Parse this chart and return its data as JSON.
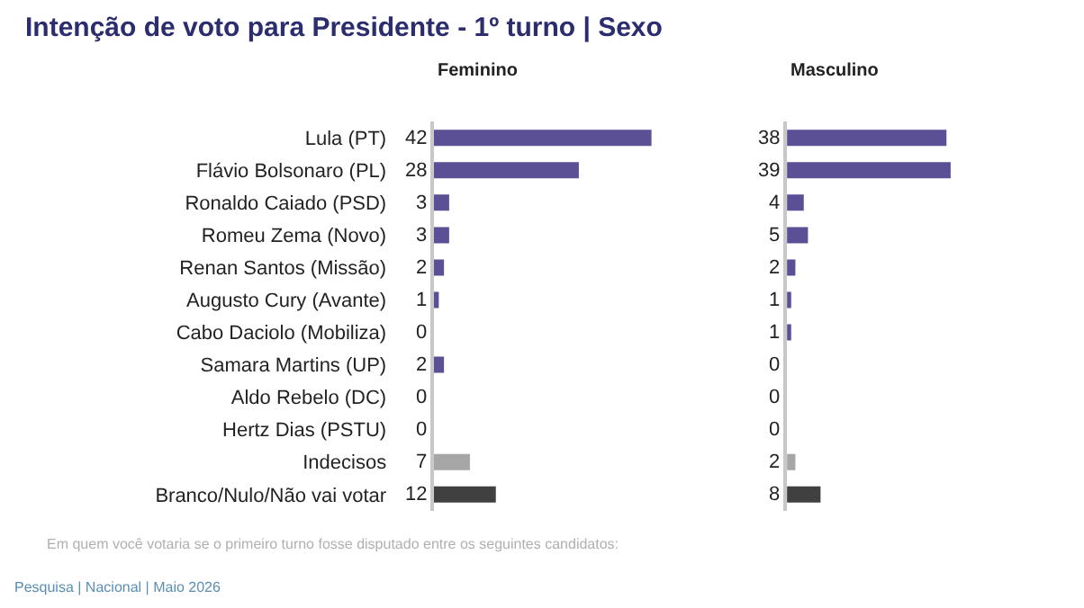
{
  "chart_data": [
    {
      "type": "bar",
      "orientation": "horizontal",
      "title": "Intenção de voto para Presidente - 1º turno | Sexo",
      "subtitle": "Feminino",
      "categories": [
        "Lula (PT)",
        "Flávio Bolsonaro (PL)",
        "Ronaldo Caiado (PSD)",
        "Romeu Zema (Novo)",
        "Renan Santos (Missão)",
        "Augusto Cury (Avante)",
        "Cabo Daciolo (Mobiliza)",
        "Samara Martins (UP)",
        "Aldo Rebelo (DC)",
        "Hertz Dias (PSTU)",
        "Indecisos",
        "Branco/Nulo/Não vai votar"
      ],
      "values": [
        42,
        28,
        3,
        3,
        2,
        1,
        0,
        2,
        0,
        0,
        7,
        12
      ],
      "colors": [
        "#5b4f96",
        "#5b4f96",
        "#5b4f96",
        "#5b4f96",
        "#5b4f96",
        "#5b4f96",
        "#5b4f96",
        "#5b4f96",
        "#5b4f96",
        "#5b4f96",
        "#a6a6a6",
        "#404040"
      ],
      "data_labels": true,
      "tick_labels": "y",
      "annotations": [
        "Em quem você votaria se o primeiro turno fosse disputado entre os seguintes candidatos:",
        "Pesquisa | Nacional | Maio 2026"
      ]
    },
    {
      "type": "bar",
      "orientation": "horizontal",
      "subtitle": "Masculino",
      "values": [
        38,
        39,
        4,
        5,
        2,
        1,
        1,
        0,
        0,
        0,
        2,
        8
      ],
      "colors": [
        "#5b4f96",
        "#5b4f96",
        "#5b4f96",
        "#5b4f96",
        "#5b4f96",
        "#5b4f96",
        "#5b4f96",
        "#5b4f96",
        "#5b4f96",
        "#5b4f96",
        "#a6a6a6",
        "#404040"
      ],
      "data_labels": true,
      "tick_labels": false
    }
  ]
}
